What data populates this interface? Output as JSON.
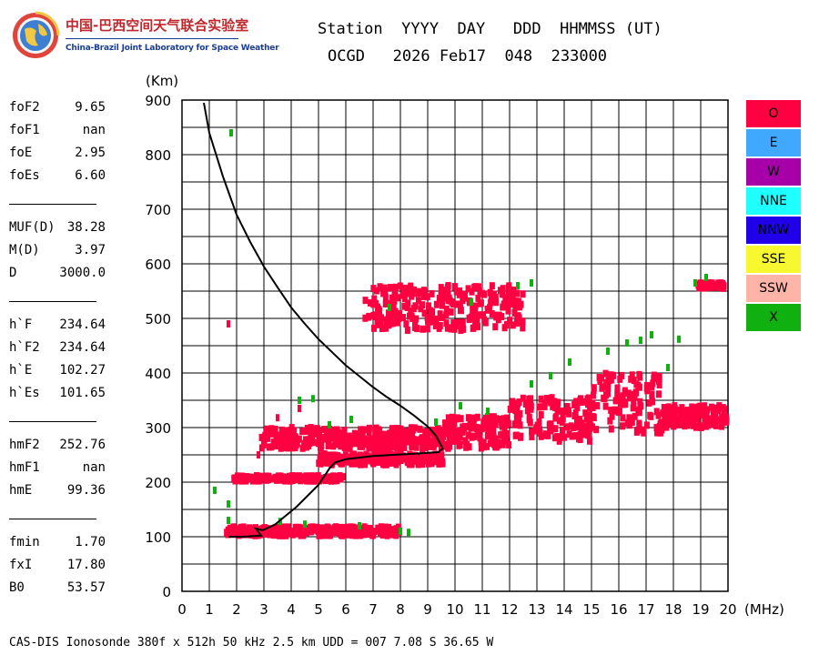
{
  "logo": {
    "cn": "中国-巴西空间天气联合实验室",
    "en": "China-Brazil Joint Laboratory for Space Weather"
  },
  "header": {
    "line1": "Station  YYYY  DAY   DDD  HHMMSS (UT)",
    "line2": "OCGD   2026 Feb17  048  233000"
  },
  "params": [
    {
      "label": "foF2",
      "value": "9.65"
    },
    {
      "label": "foF1",
      "value": "nan"
    },
    {
      "label": "foE",
      "value": "2.95"
    },
    {
      "label": "foEs",
      "value": "6.60"
    },
    {
      "sep": true
    },
    {
      "label": "MUF(D)",
      "value": "38.28"
    },
    {
      "label": "M(D)",
      "value": "3.97"
    },
    {
      "label": "D",
      "value": "3000.0"
    },
    {
      "sep": true
    },
    {
      "label": "h`F",
      "value": "234.64"
    },
    {
      "label": "h`F2",
      "value": "234.64"
    },
    {
      "label": "h`E",
      "value": "102.27"
    },
    {
      "label": "h`Es",
      "value": "101.65"
    },
    {
      "sep": true
    },
    {
      "label": "hmF2",
      "value": "252.76"
    },
    {
      "label": "hmF1",
      "value": "nan"
    },
    {
      "label": "hmE",
      "value": "99.36"
    },
    {
      "sep": true
    },
    {
      "label": "fmin",
      "value": "1.70"
    },
    {
      "label": "fxI",
      "value": "17.80"
    },
    {
      "label": "B0",
      "value": "53.57"
    }
  ],
  "legend": [
    {
      "label": "O",
      "color": "#ff0040"
    },
    {
      "label": "E",
      "color": "#40a8ff"
    },
    {
      "label": "W",
      "color": "#a800a8"
    },
    {
      "label": "NNE",
      "color": "#20ffff"
    },
    {
      "label": "NNW",
      "color": "#2000e8"
    },
    {
      "label": "SSE",
      "color": "#f8f830"
    },
    {
      "label": "SSW",
      "color": "#ffb4a8"
    },
    {
      "label": "X",
      "color": "#10b010"
    }
  ],
  "footer": "CAS-DIS Ionosonde 380f x 512h 50 kHz 2.5 km UDD = 007 7.08 S 36.65 W",
  "chart_data": {
    "type": "scatter",
    "title": "",
    "xlabel": "(MHz)",
    "ylabel": "(Km)",
    "xlim": [
      0,
      20
    ],
    "ylim": [
      0,
      900
    ],
    "xticks": [
      0,
      1,
      2,
      3,
      4,
      5,
      6,
      7,
      8,
      9,
      10,
      11,
      12,
      13,
      14,
      15,
      16,
      17,
      18,
      19,
      20
    ],
    "yticks": [
      0,
      100,
      200,
      300,
      400,
      500,
      600,
      700,
      800,
      900
    ],
    "grid": true,
    "series": [
      {
        "name": "O",
        "color": "#ff0040",
        "bands": [
          {
            "x0": 1.6,
            "x1": 8.0,
            "y0": 102,
            "y1": 118
          },
          {
            "x0": 1.9,
            "x1": 5.9,
            "y0": 202,
            "y1": 212
          },
          {
            "x0": 2.9,
            "x1": 9.6,
            "y0": 262,
            "y1": 300
          },
          {
            "x0": 5.0,
            "x1": 9.6,
            "y0": 232,
            "y1": 252
          },
          {
            "x0": 9.6,
            "x1": 12.0,
            "y0": 262,
            "y1": 320
          },
          {
            "x0": 12.0,
            "x1": 15.0,
            "y0": 275,
            "y1": 355
          },
          {
            "x0": 15.0,
            "x1": 17.6,
            "y0": 290,
            "y1": 400
          },
          {
            "x0": 17.6,
            "x1": 20.0,
            "y0": 300,
            "y1": 340
          },
          {
            "x0": 6.7,
            "x1": 12.5,
            "y0": 478,
            "y1": 560
          },
          {
            "x0": 18.9,
            "x1": 19.9,
            "y0": 555,
            "y1": 565
          }
        ],
        "points": [
          [
            1.7,
            490
          ],
          [
            3.5,
            318
          ],
          [
            2.8,
            250
          ],
          [
            4.3,
            335
          ]
        ]
      },
      {
        "name": "X",
        "color": "#10b010",
        "points": [
          [
            1.8,
            840
          ],
          [
            1.2,
            185
          ],
          [
            1.7,
            160
          ],
          [
            1.7,
            130
          ],
          [
            4.3,
            350
          ],
          [
            4.8,
            353
          ],
          [
            7.6,
            520
          ],
          [
            8.3,
            108
          ],
          [
            8.0,
            110
          ],
          [
            16.8,
            460
          ],
          [
            17.2,
            470
          ],
          [
            18.2,
            462
          ],
          [
            19.2,
            575
          ],
          [
            18.8,
            565
          ],
          [
            12.8,
            380
          ],
          [
            13.5,
            395
          ],
          [
            14.2,
            420
          ],
          [
            15.6,
            440
          ],
          [
            16.3,
            455
          ],
          [
            17.8,
            410
          ],
          [
            11.2,
            330
          ],
          [
            10.2,
            340
          ],
          [
            6.2,
            315
          ],
          [
            5.4,
            305
          ],
          [
            9.3,
            310
          ],
          [
            12.3,
            560
          ],
          [
            12.8,
            565
          ],
          [
            10.6,
            530
          ],
          [
            3.6,
            128
          ],
          [
            4.5,
            123
          ],
          [
            6.5,
            120
          ]
        ]
      }
    ],
    "trace": {
      "color": "#000000",
      "points": [
        [
          0.8,
          895
        ],
        [
          1.0,
          840
        ],
        [
          1.5,
          760
        ],
        [
          2.0,
          690
        ],
        [
          2.5,
          640
        ],
        [
          3.0,
          595
        ],
        [
          3.5,
          557
        ],
        [
          4.0,
          520
        ],
        [
          4.5,
          490
        ],
        [
          5.0,
          462
        ],
        [
          5.5,
          438
        ],
        [
          6.0,
          414
        ],
        [
          6.5,
          394
        ],
        [
          7.0,
          374
        ],
        [
          7.5,
          356
        ],
        [
          8.0,
          340
        ],
        [
          8.5,
          322
        ],
        [
          9.0,
          302
        ],
        [
          9.3,
          285
        ],
        [
          9.55,
          262
        ],
        [
          9.4,
          255
        ],
        [
          8.5,
          252
        ],
        [
          7.0,
          248
        ],
        [
          6.0,
          242
        ],
        [
          5.6,
          236
        ],
        [
          5.4,
          225
        ],
        [
          5.0,
          195
        ],
        [
          4.2,
          155
        ],
        [
          3.4,
          122
        ],
        [
          2.95,
          112
        ],
        [
          2.7,
          115
        ],
        [
          2.9,
          102
        ],
        [
          2.2,
          100
        ],
        [
          1.7,
          100
        ]
      ]
    }
  }
}
